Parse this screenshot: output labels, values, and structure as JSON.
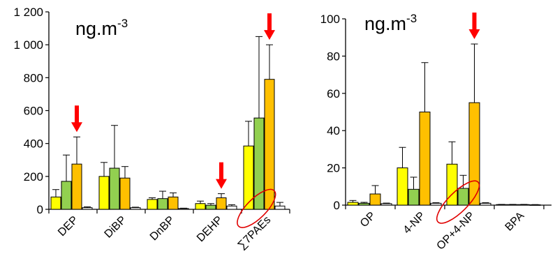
{
  "colors": {
    "yellow": "#FFFF00",
    "green": "#92D050",
    "orange": "#FFC000",
    "white": "#FFFFFF",
    "arrow": "#FF0000",
    "circle": "#E00000"
  },
  "chart_data": [
    {
      "type": "bar",
      "title": "",
      "unit_label": "ng.m",
      "unit_exponent": "-3",
      "ylim": [
        0,
        1200
      ],
      "yticks": [
        0,
        200,
        400,
        600,
        800,
        1000,
        1200
      ],
      "ytick_labels": [
        "0",
        "200",
        "400",
        "600",
        "800",
        "1 000",
        "1 200"
      ],
      "grid": false,
      "legend": "none",
      "categories": [
        "DEP",
        "DiBP",
        "DnBP",
        "DEHP",
        "∑7PAEs"
      ],
      "series_colors": [
        "yellow",
        "green",
        "orange",
        "white"
      ],
      "series": [
        {
          "values": [
            75,
            200,
            60,
            35,
            385
          ],
          "errors": [
            45,
            85,
            10,
            15,
            150
          ]
        },
        {
          "values": [
            170,
            250,
            65,
            25,
            555
          ],
          "errors": [
            160,
            260,
            45,
            10,
            495
          ]
        },
        {
          "values": [
            275,
            190,
            75,
            70,
            790
          ],
          "errors": [
            165,
            70,
            25,
            25,
            210
          ]
        },
        {
          "values": [
            10,
            10,
            5,
            20,
            20
          ],
          "errors": [
            5,
            3,
            2,
            8,
            22
          ]
        }
      ],
      "highlight_arrows": [
        "DEP",
        "DEHP",
        "∑7PAEs"
      ],
      "circled_categories": [
        "∑7PAEs"
      ]
    },
    {
      "type": "bar",
      "title": "",
      "unit_label": "ng.m",
      "unit_exponent": "-3",
      "ylim": [
        0,
        100
      ],
      "yticks": [
        0,
        20,
        40,
        60,
        80,
        100
      ],
      "ytick_labels": [
        "0",
        "20",
        "40",
        "60",
        "80",
        "100"
      ],
      "grid": false,
      "legend": "none",
      "categories": [
        "OP",
        "4-NP",
        "OP+4-NP",
        "BPA"
      ],
      "series_colors": [
        "yellow",
        "green",
        "orange",
        "white"
      ],
      "series": [
        {
          "values": [
            1.5,
            20,
            22,
            0.3
          ],
          "errors": [
            1,
            11,
            12,
            0.1
          ]
        },
        {
          "values": [
            1,
            8.5,
            9,
            0.3
          ],
          "errors": [
            0.5,
            6.5,
            7,
            0.1
          ]
        },
        {
          "values": [
            6,
            50,
            55,
            0.3
          ],
          "errors": [
            4.5,
            26.5,
            31.5,
            0.1
          ]
        },
        {
          "values": [
            0.8,
            1,
            1,
            0.2
          ],
          "errors": [
            0.3,
            0.3,
            0.3,
            0.1
          ]
        }
      ],
      "highlight_arrows": [
        "OP+4-NP"
      ],
      "circled_categories": [
        "OP+4-NP"
      ]
    }
  ]
}
